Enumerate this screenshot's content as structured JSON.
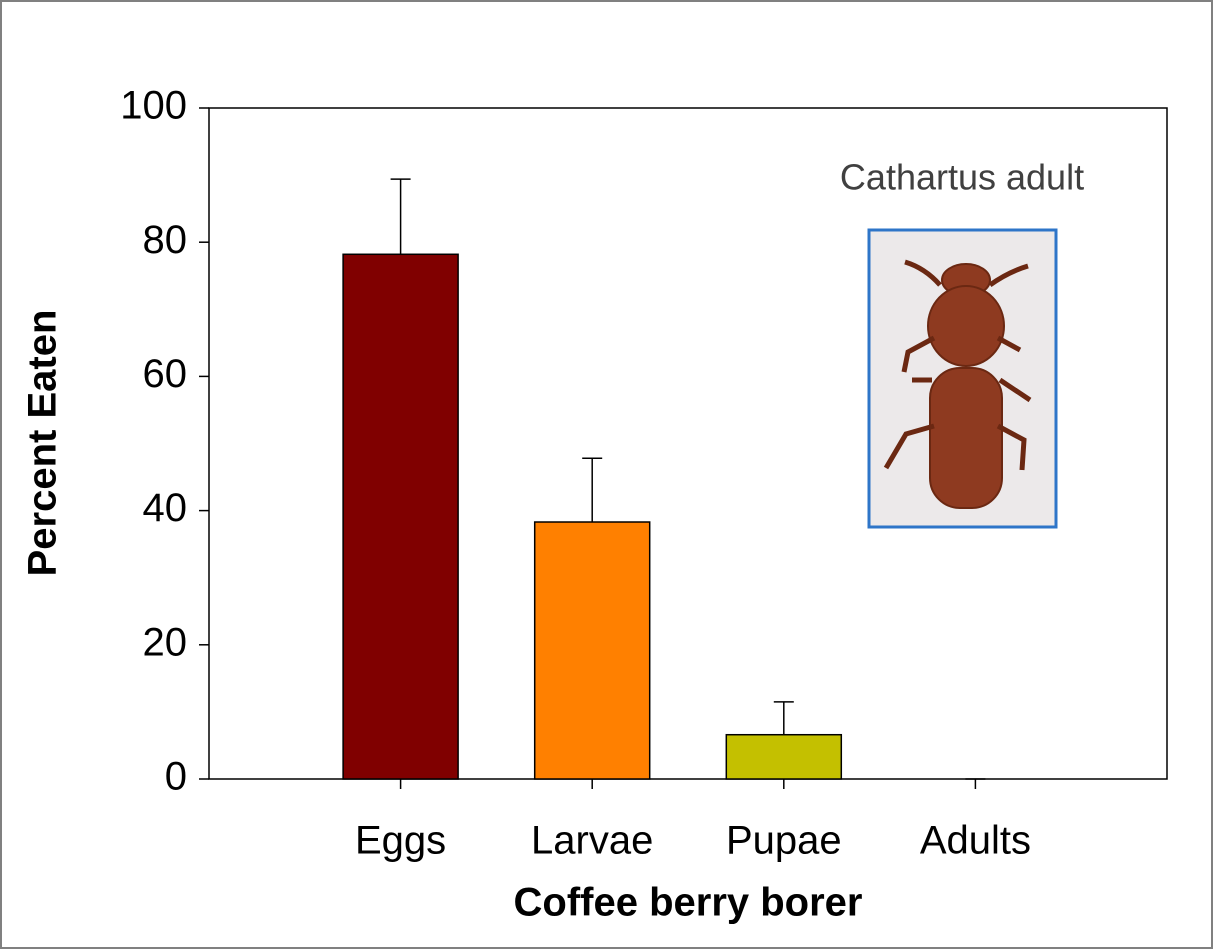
{
  "chart_data": {
    "type": "bar",
    "y_label": "Percent Eaten",
    "x_label": "Coffee berry borer",
    "annotation": "Cathartus adult",
    "categories": [
      "Eggs",
      "Larvae",
      "Pupae",
      "Adults"
    ],
    "values": [
      78.2,
      38.3,
      6.6,
      0
    ],
    "errors": [
      11.2,
      9.5,
      4.9,
      0
    ],
    "colors": [
      "#800000",
      "#ff8000",
      "#c4c000",
      "#ffffff"
    ],
    "ylim": [
      0,
      100
    ],
    "yticks": [
      0,
      20,
      40,
      60,
      80,
      100
    ]
  }
}
